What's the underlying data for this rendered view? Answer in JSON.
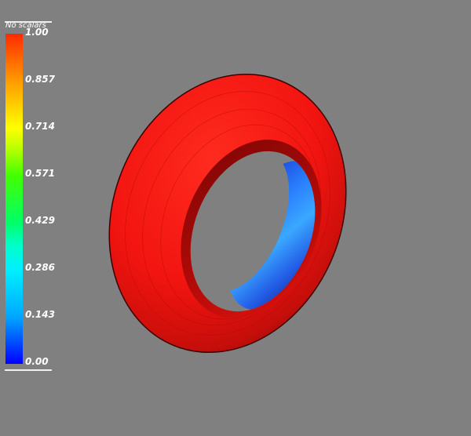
{
  "scalar_bar": {
    "title": "No scalars",
    "ticks": [
      "1.00",
      "0.857",
      "0.714",
      "0.571",
      "0.429",
      "0.286",
      "0.143",
      "0.00"
    ],
    "colormap": [
      "#ff2a00",
      "#ff9a00",
      "#ffff00",
      "#43ff00",
      "#00ff66",
      "#00f0ff",
      "#00a8ff",
      "#0000ff"
    ]
  },
  "scene": {
    "object": "torus",
    "outer_color": "#ff1a10",
    "inner_color": "#2a6cf0",
    "background": "#808080"
  }
}
